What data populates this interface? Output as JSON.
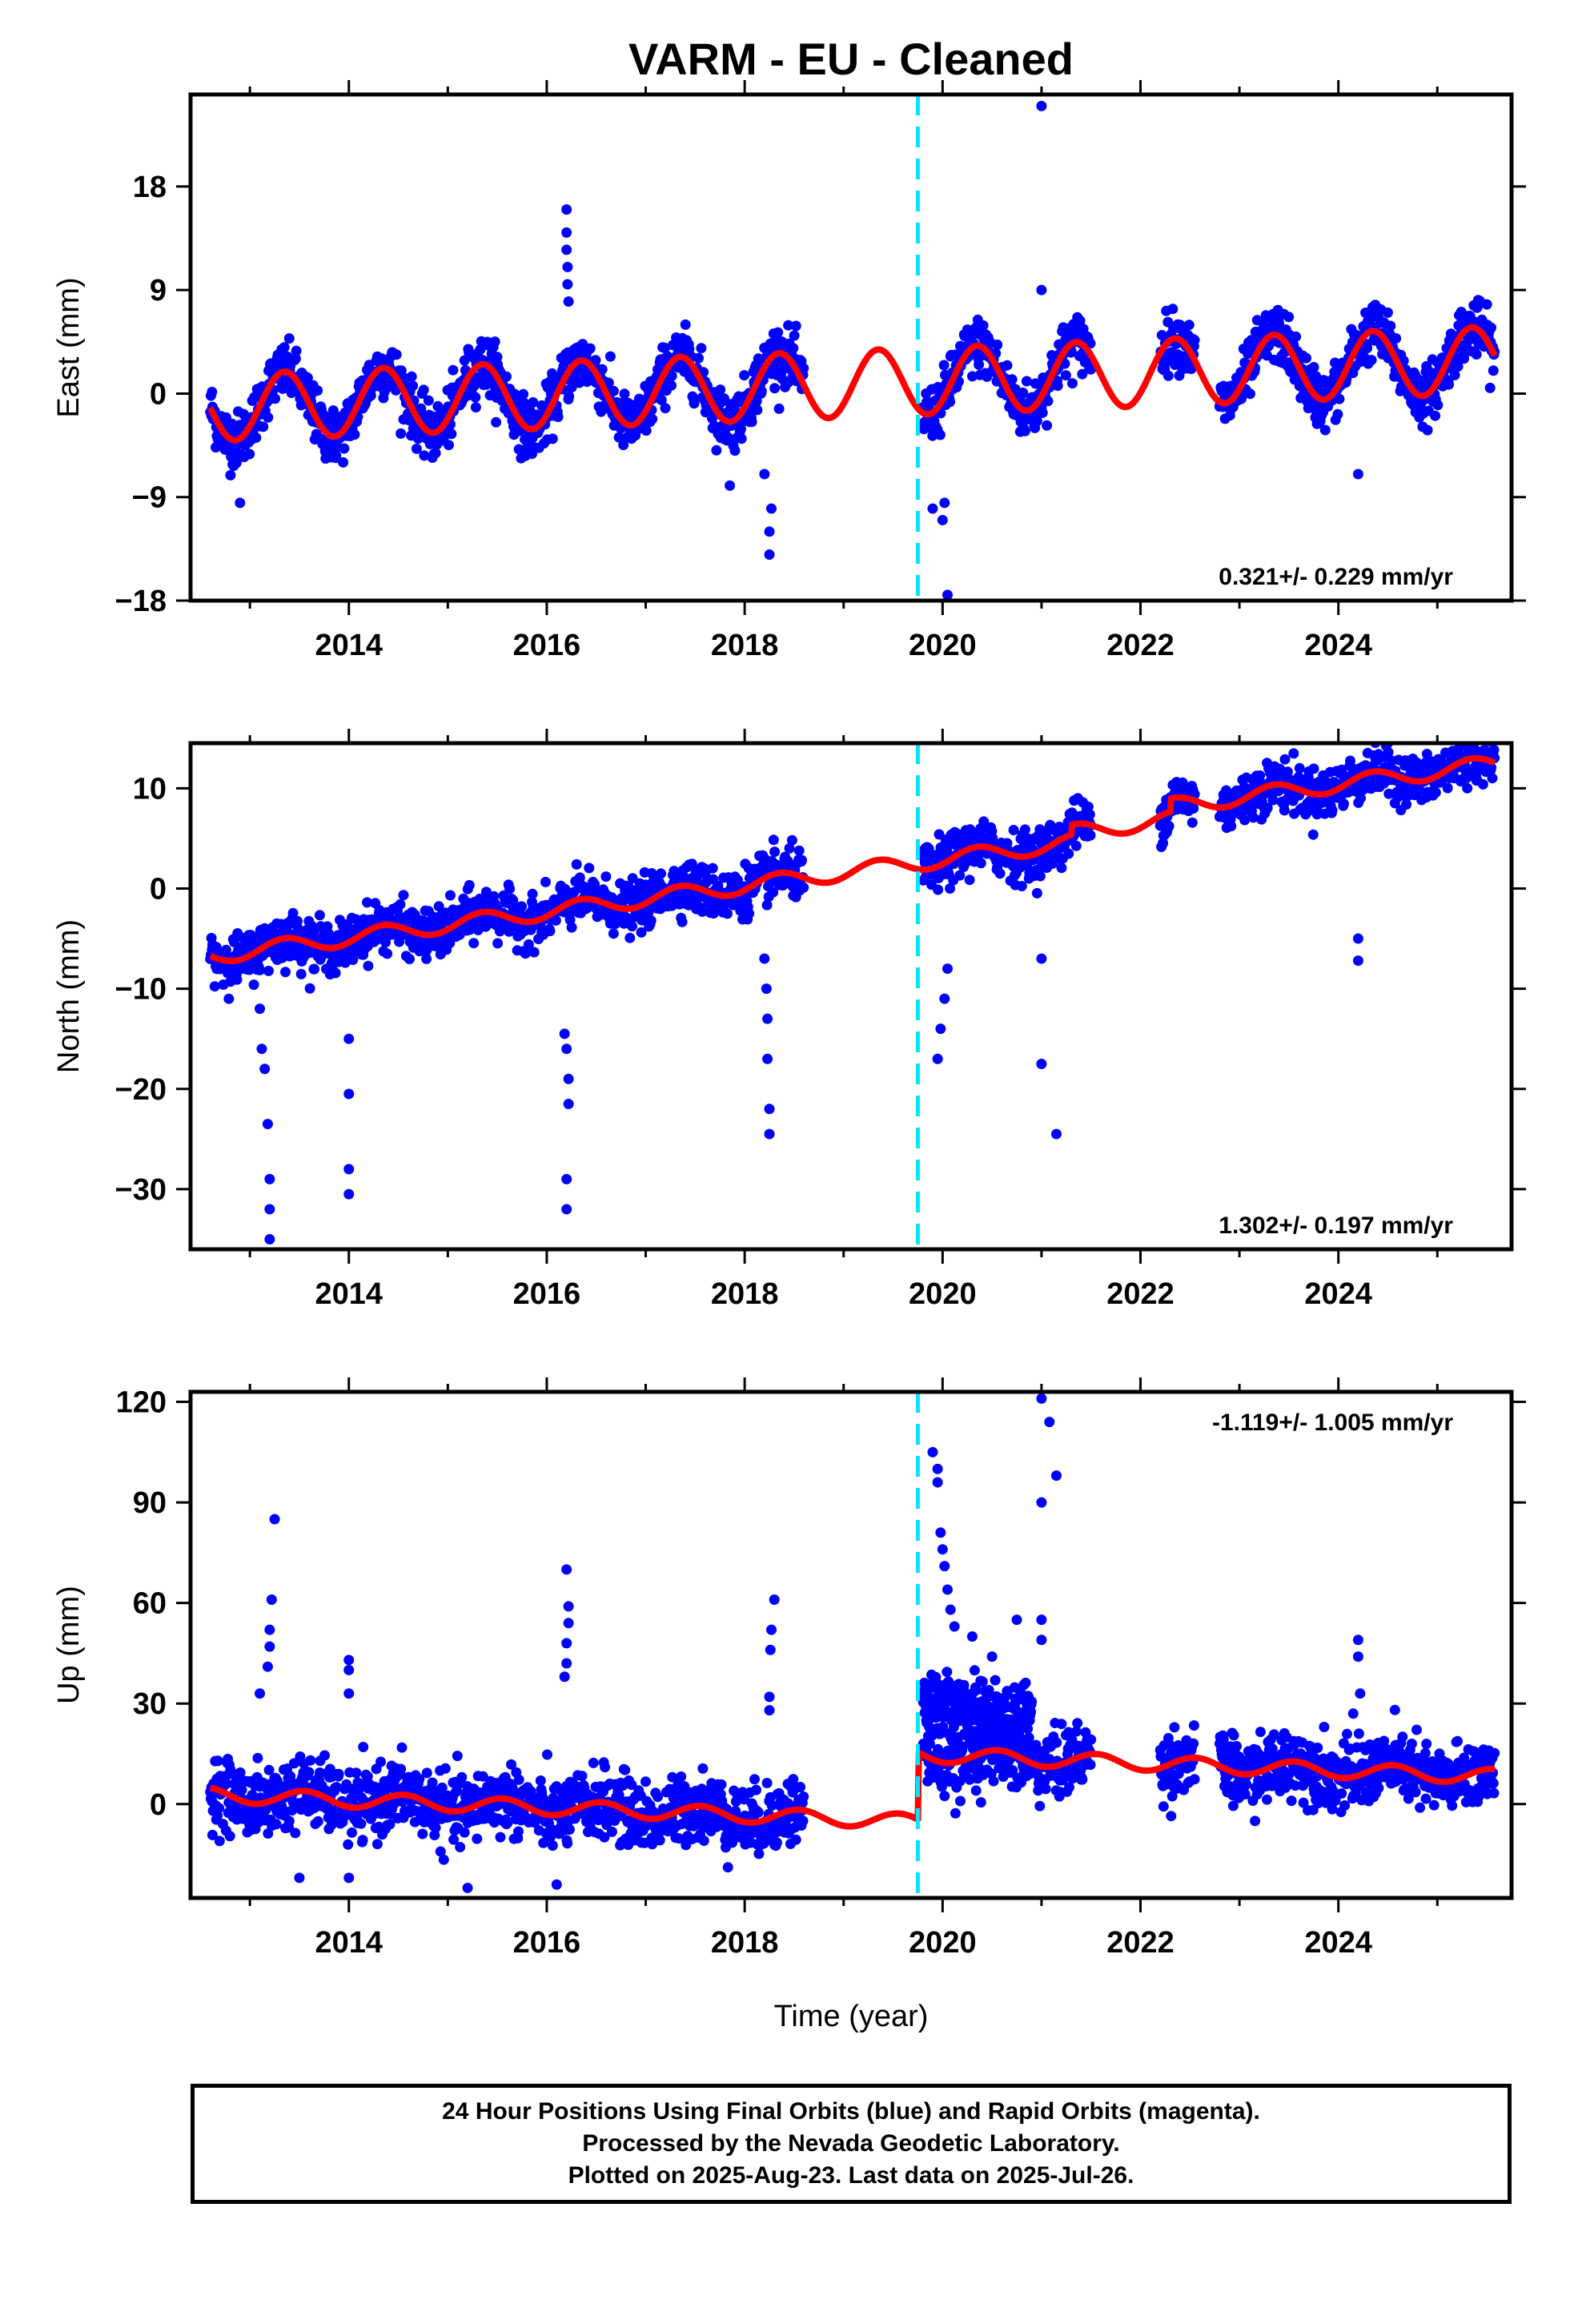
{
  "chart_data": {
    "title": "VARM  - EU - Cleaned",
    "xlabel": "Time (year)",
    "xlim": [
      2012.4,
      2025.75
    ],
    "x_ticks": [
      2014,
      2016,
      2018,
      2020,
      2022,
      2024
    ],
    "event_line_x": 2019.75,
    "colors": {
      "final_orbits": "#0000ff",
      "model": "#ff0000",
      "event_line": "#00e5ff"
    },
    "panels": [
      {
        "type": "scatter",
        "ylabel": "East (mm)",
        "ylim": [
          -18,
          26
        ],
        "y_ticks": [
          -18,
          -9,
          0,
          9,
          18
        ],
        "y_tick_labels": [
          "−18",
          "−9",
          "0",
          "9",
          "18"
        ],
        "rate_text": "0.321+/- 0.229 mm/yr",
        "model": {
          "trend": 0.321,
          "offset": -1.3,
          "amp": 2.9,
          "phase_year": 2013.1
        },
        "data_segments": [
          [
            2012.6,
            2018.6
          ],
          [
            2019.8,
            2021.5
          ],
          [
            2022.2,
            2022.55
          ],
          [
            2022.8,
            2025.58
          ]
        ],
        "noise": 1.2,
        "outliers": [
          {
            "x": 2016.2,
            "y": 16
          },
          {
            "x": 2016.2,
            "y": 14
          },
          {
            "x": 2016.2,
            "y": 12.5
          },
          {
            "x": 2016.21,
            "y": 11
          },
          {
            "x": 2016.21,
            "y": 9.5
          },
          {
            "x": 2016.22,
            "y": 8
          },
          {
            "x": 2021.0,
            "y": 25
          },
          {
            "x": 2021.0,
            "y": 9
          },
          {
            "x": 2018.25,
            "y": -14
          },
          {
            "x": 2018.25,
            "y": -12
          },
          {
            "x": 2018.27,
            "y": -10
          },
          {
            "x": 2018.2,
            "y": -7
          },
          {
            "x": 2017.85,
            "y": -8
          },
          {
            "x": 2020.05,
            "y": -17.5
          },
          {
            "x": 2020.0,
            "y": -11
          },
          {
            "x": 2020.02,
            "y": -9.5
          },
          {
            "x": 2019.9,
            "y": -10
          },
          {
            "x": 2024.2,
            "y": -7
          },
          {
            "x": 2012.9,
            "y": -9.5
          }
        ]
      },
      {
        "type": "scatter",
        "ylabel": "North (mm)",
        "ylim": [
          -36,
          14.5
        ],
        "y_ticks": [
          -30,
          -20,
          -10,
          0,
          10
        ],
        "y_tick_labels": [
          "−30",
          "−20",
          "−10",
          "0",
          "10"
        ],
        "rate_text": "1.302+/- 0.197 mm/yr",
        "model": {
          "trend": 1.302,
          "offset": -7.0,
          "amp": 0.8,
          "phase_year": 2013.1
        },
        "steps": [
          {
            "x": 2019.75,
            "dy": 0
          },
          {
            "x": 2021.3,
            "dy": 1.0
          },
          {
            "x": 2022.3,
            "dy": 1.3
          }
        ],
        "data_segments": [
          [
            2012.6,
            2018.6
          ],
          [
            2019.8,
            2021.5
          ],
          [
            2022.2,
            2022.55
          ],
          [
            2022.8,
            2025.58
          ]
        ],
        "noise": 1.2,
        "outliers": [
          {
            "x": 2013.2,
            "y": -35
          },
          {
            "x": 2013.2,
            "y": -32
          },
          {
            "x": 2013.2,
            "y": -29
          },
          {
            "x": 2013.18,
            "y": -23.5
          },
          {
            "x": 2013.15,
            "y": -18
          },
          {
            "x": 2013.12,
            "y": -16
          },
          {
            "x": 2013.1,
            "y": -12
          },
          {
            "x": 2014.0,
            "y": -30.5
          },
          {
            "x": 2014.0,
            "y": -28
          },
          {
            "x": 2014.0,
            "y": -20.5
          },
          {
            "x": 2014.0,
            "y": -15
          },
          {
            "x": 2016.2,
            "y": -32
          },
          {
            "x": 2016.2,
            "y": -29
          },
          {
            "x": 2016.22,
            "y": -21.5
          },
          {
            "x": 2016.22,
            "y": -19
          },
          {
            "x": 2016.2,
            "y": -16
          },
          {
            "x": 2016.18,
            "y": -14.5
          },
          {
            "x": 2018.25,
            "y": -24.5
          },
          {
            "x": 2018.25,
            "y": -22
          },
          {
            "x": 2018.23,
            "y": -17
          },
          {
            "x": 2018.23,
            "y": -13
          },
          {
            "x": 2018.22,
            "y": -10
          },
          {
            "x": 2018.2,
            "y": -7
          },
          {
            "x": 2019.95,
            "y": -17
          },
          {
            "x": 2019.98,
            "y": -14
          },
          {
            "x": 2020.02,
            "y": -11
          },
          {
            "x": 2020.05,
            "y": -8
          },
          {
            "x": 2021.0,
            "y": -17.5
          },
          {
            "x": 2021.15,
            "y": -24.5
          },
          {
            "x": 2021.0,
            "y": -7
          },
          {
            "x": 2024.2,
            "y": -7.2
          },
          {
            "x": 2024.2,
            "y": -5
          }
        ]
      },
      {
        "type": "scatter",
        "ylabel": "Up (mm)",
        "ylim": [
          -28,
          123
        ],
        "y_ticks": [
          0,
          30,
          60,
          90,
          120
        ],
        "y_tick_labels": [
          "0",
          "30",
          "60",
          "90",
          "120"
        ],
        "rate_text": "-1.119+/- 1.005 mm/yr",
        "model": {
          "trend": -1.119,
          "offset": 3.0,
          "amp": 2.2,
          "phase_year": 2013.3
        },
        "steps": [
          {
            "x": 2019.75,
            "dy": 20
          }
        ],
        "data_segments": [
          [
            2012.6,
            2018.6
          ],
          [
            2019.8,
            2021.5
          ],
          [
            2022.2,
            2022.55
          ],
          [
            2022.8,
            2025.58
          ]
        ],
        "noise": 5.0,
        "outliers": [
          {
            "x": 2013.25,
            "y": 85
          },
          {
            "x": 2013.22,
            "y": 61
          },
          {
            "x": 2013.2,
            "y": 52
          },
          {
            "x": 2013.2,
            "y": 47
          },
          {
            "x": 2013.18,
            "y": 41
          },
          {
            "x": 2013.1,
            "y": 33
          },
          {
            "x": 2014.0,
            "y": 43
          },
          {
            "x": 2014.0,
            "y": 40
          },
          {
            "x": 2014.0,
            "y": 33
          },
          {
            "x": 2016.2,
            "y": 70
          },
          {
            "x": 2016.22,
            "y": 59
          },
          {
            "x": 2016.22,
            "y": 54
          },
          {
            "x": 2016.2,
            "y": 48
          },
          {
            "x": 2016.2,
            "y": 42
          },
          {
            "x": 2016.18,
            "y": 38
          },
          {
            "x": 2018.3,
            "y": 61
          },
          {
            "x": 2018.27,
            "y": 52
          },
          {
            "x": 2018.26,
            "y": 46
          },
          {
            "x": 2018.25,
            "y": 32
          },
          {
            "x": 2018.25,
            "y": 28
          },
          {
            "x": 2019.9,
            "y": 105
          },
          {
            "x": 2019.95,
            "y": 100
          },
          {
            "x": 2019.95,
            "y": 96
          },
          {
            "x": 2019.98,
            "y": 81
          },
          {
            "x": 2020.0,
            "y": 76
          },
          {
            "x": 2020.02,
            "y": 71
          },
          {
            "x": 2020.05,
            "y": 64
          },
          {
            "x": 2020.08,
            "y": 58
          },
          {
            "x": 2020.12,
            "y": 53
          },
          {
            "x": 2020.3,
            "y": 50
          },
          {
            "x": 2020.5,
            "y": 44
          },
          {
            "x": 2020.75,
            "y": 55
          },
          {
            "x": 2021.0,
            "y": 121
          },
          {
            "x": 2021.08,
            "y": 114
          },
          {
            "x": 2021.15,
            "y": 98
          },
          {
            "x": 2021.0,
            "y": 90
          },
          {
            "x": 2021.0,
            "y": 55
          },
          {
            "x": 2021.0,
            "y": 49
          },
          {
            "x": 2024.2,
            "y": 49
          },
          {
            "x": 2024.2,
            "y": 44
          },
          {
            "x": 2024.22,
            "y": 33
          },
          {
            "x": 2024.15,
            "y": 27
          },
          {
            "x": 2013.5,
            "y": -22
          },
          {
            "x": 2015.2,
            "y": -25
          },
          {
            "x": 2016.1,
            "y": -24
          },
          {
            "x": 2014.0,
            "y": -22
          }
        ],
        "extra_cluster": {
          "x_range": [
            2019.8,
            2020.9
          ],
          "y_center": 28,
          "spread": 8
        }
      }
    ]
  },
  "footer": {
    "line1": "24 Hour Positions Using Final Orbits (blue) and Rapid Orbits (magenta).",
    "line2": "Processed by the Nevada Geodetic Laboratory.",
    "line3": "Plotted on 2025-Aug-23. Last data on 2025-Jul-26."
  }
}
